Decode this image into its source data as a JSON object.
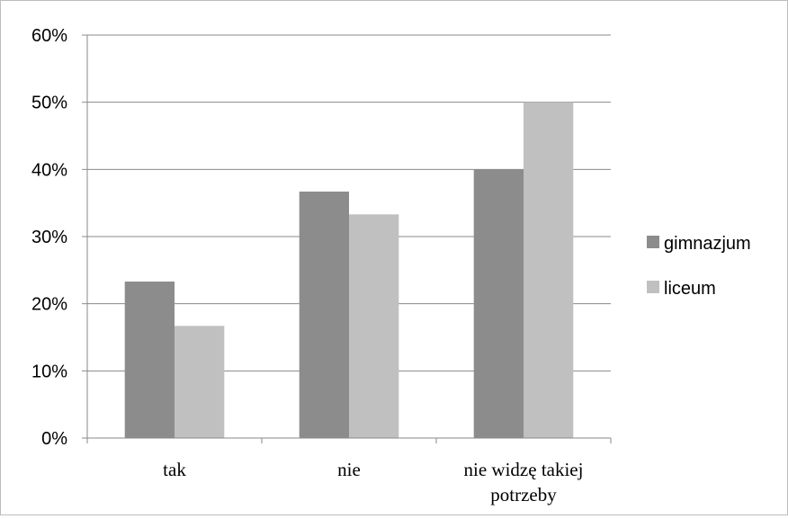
{
  "chart_data": {
    "type": "bar",
    "categories": [
      [
        "tak"
      ],
      [
        "nie"
      ],
      [
        "nie widzę takiej",
        "potrzeby"
      ]
    ],
    "series": [
      {
        "name": "gimnazjum",
        "color": "#8c8c8c",
        "values": [
          23.3,
          36.7,
          40.0
        ]
      },
      {
        "name": "liceum",
        "color": "#c0c0c0",
        "values": [
          16.7,
          33.3,
          50.0
        ]
      }
    ],
    "y_ticks": [
      "0%",
      "10%",
      "20%",
      "30%",
      "40%",
      "50%",
      "60%"
    ],
    "ylim": [
      0,
      60
    ],
    "grid": true,
    "legend_position": "right"
  }
}
